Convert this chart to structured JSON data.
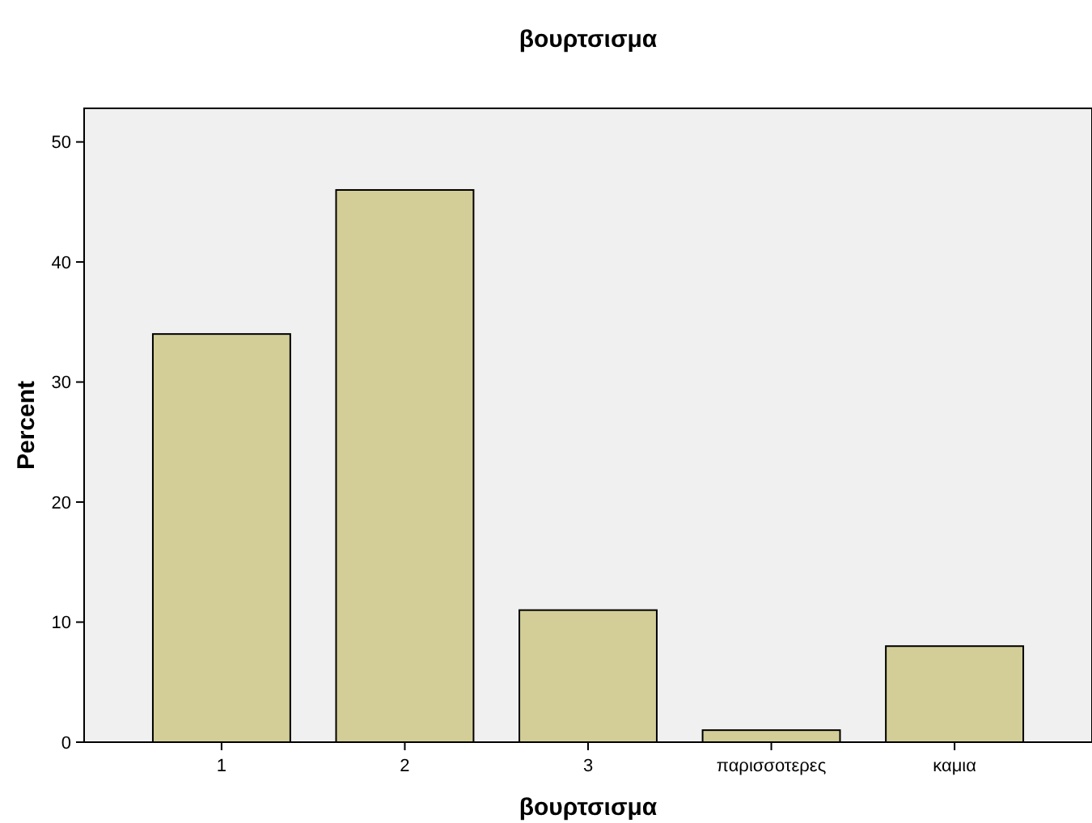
{
  "chart_data": {
    "type": "bar",
    "title": "βουρτσισμα",
    "xlabel": "βουρτσισμα",
    "ylabel": "Percent",
    "categories": [
      "1",
      "2",
      "3",
      "παρισσοτερες",
      "καμια"
    ],
    "values": [
      34,
      46,
      11,
      1,
      8
    ],
    "color": "#d3ce97",
    "ylim": [
      0,
      52.8
    ],
    "yticks": [
      0,
      10,
      20,
      30,
      40,
      50
    ],
    "grid": false
  }
}
